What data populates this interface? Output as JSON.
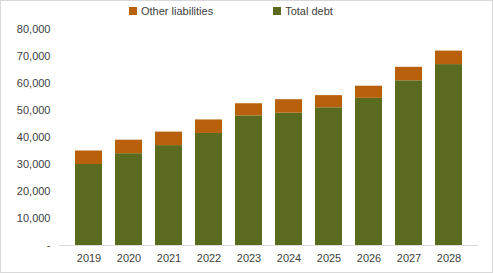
{
  "chart_data": {
    "type": "bar",
    "stacked": true,
    "legend": "top",
    "categories": [
      "2019",
      "2020",
      "2021",
      "2022",
      "2023",
      "2024",
      "2025",
      "2026",
      "2027",
      "2028"
    ],
    "series": [
      {
        "name": "Total debt",
        "color": "#5a6b1f",
        "values": [
          30000,
          34000,
          37000,
          41500,
          48000,
          49000,
          51000,
          54500,
          61000,
          67000
        ]
      },
      {
        "name": "Other liabilities",
        "color": "#b8600c",
        "values": [
          5000,
          5000,
          5000,
          5000,
          4500,
          5000,
          4500,
          4500,
          5000,
          5000
        ]
      }
    ],
    "ylim": [
      0,
      80000
    ],
    "yticks": [
      {
        "value": 0,
        "label": "-"
      },
      {
        "value": 10000,
        "label": "10,000"
      },
      {
        "value": 20000,
        "label": "20,000"
      },
      {
        "value": 30000,
        "label": "30,000"
      },
      {
        "value": 40000,
        "label": "40,000"
      },
      {
        "value": 50000,
        "label": "50,000"
      },
      {
        "value": 60000,
        "label": "60,000"
      },
      {
        "value": 70000,
        "label": "70,000"
      },
      {
        "value": 80000,
        "label": "80,000"
      }
    ],
    "grid": false
  }
}
